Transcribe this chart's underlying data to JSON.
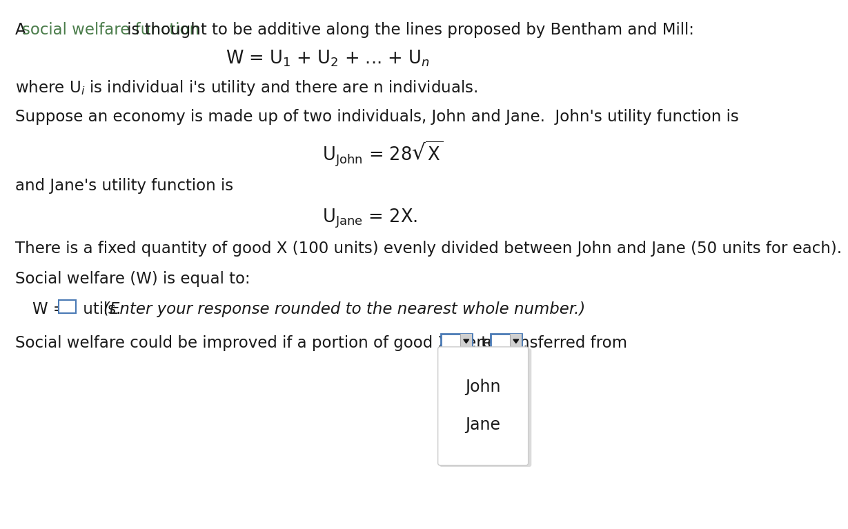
{
  "bg_color": "#ffffff",
  "text_color": "#1a1a1a",
  "green_color": "#4a7c4a",
  "dropdown_border_color": "#4a7ab5",
  "font_size_main": 16.5,
  "font_size_formula": 17.5,
  "line1_a": "A ",
  "line1_colored": "social welfare function",
  "line1_rest": " is thought to be additive along the lines proposed by Bentham and Mill:",
  "line2": "where U",
  "line2b": "i",
  "line2c": " is individual i's utility and there are n individuals.",
  "line3": "Suppose an economy is made up of two individuals, John and Jane.  John's utility function is",
  "line4": "and Jane's utility function is",
  "line5": "There is a fixed quantity of good X (100 units) evenly divided between John and Jane (50 units for each).",
  "line6": "Social welfare (W) is equal to:",
  "line7a": "W = ",
  "line7b": " utils.  ",
  "line7c": "(Enter your response rounded to the nearest whole number.)",
  "line8": "Social welfare could be improved if a portion of good X were transferred from",
  "to_text": " to",
  "period": ".",
  "menu_option1": "John",
  "menu_option2": "Jane"
}
